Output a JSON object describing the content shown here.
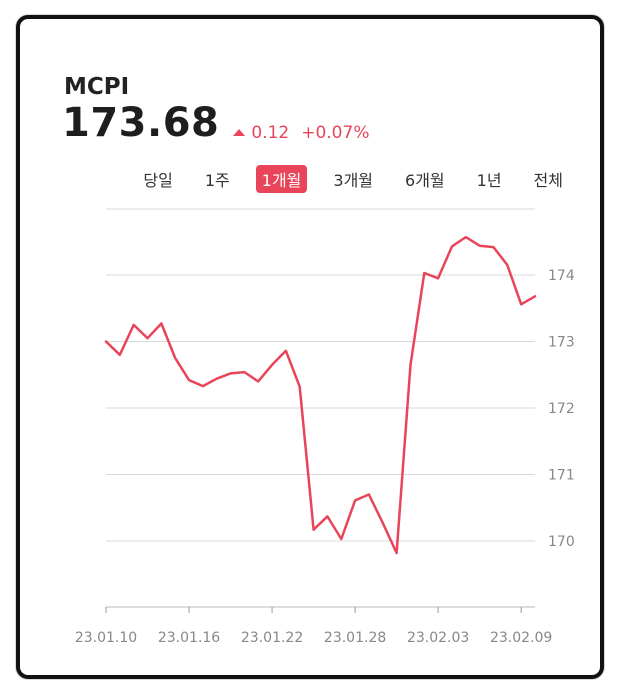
{
  "header": {
    "ticker": "MCPI",
    "price": "173.68",
    "change": "0.12",
    "change_pct": "+0.07%",
    "change_direction_icon": "triangle-up-icon"
  },
  "tabs": [
    {
      "label": "당일",
      "active": false
    },
    {
      "label": "1주",
      "active": false
    },
    {
      "label": "1개월",
      "active": true
    },
    {
      "label": "3개월",
      "active": false
    },
    {
      "label": "6개월",
      "active": false
    },
    {
      "label": "1년",
      "active": false
    },
    {
      "label": "전체",
      "active": false
    }
  ],
  "colors": {
    "accent": "#e8455a",
    "grid": "#d9d9d9",
    "tick_text": "#888888"
  },
  "chart_data": {
    "type": "line",
    "title": "",
    "xlabel": "",
    "ylabel": "",
    "ylim": [
      169,
      175
    ],
    "y_ticks": [
      170,
      171,
      172,
      173,
      174
    ],
    "x_tick_labels": [
      "23.01.10",
      "23.01.16",
      "23.01.22",
      "23.01.28",
      "23.02.03",
      "23.02.09"
    ],
    "grid": true,
    "y_axis_position": "right",
    "series": [
      {
        "values": [
          173.0,
          172.8,
          173.25,
          173.05,
          173.27,
          172.75,
          172.42,
          172.33,
          172.44,
          172.52,
          172.54,
          172.4,
          172.65,
          172.86,
          172.32,
          170.17,
          170.37,
          170.03,
          170.61,
          170.7,
          170.27,
          169.82,
          172.65,
          174.03,
          173.95,
          174.43,
          174.57,
          174.44,
          174.42,
          174.15,
          173.56,
          173.68
        ]
      }
    ]
  }
}
